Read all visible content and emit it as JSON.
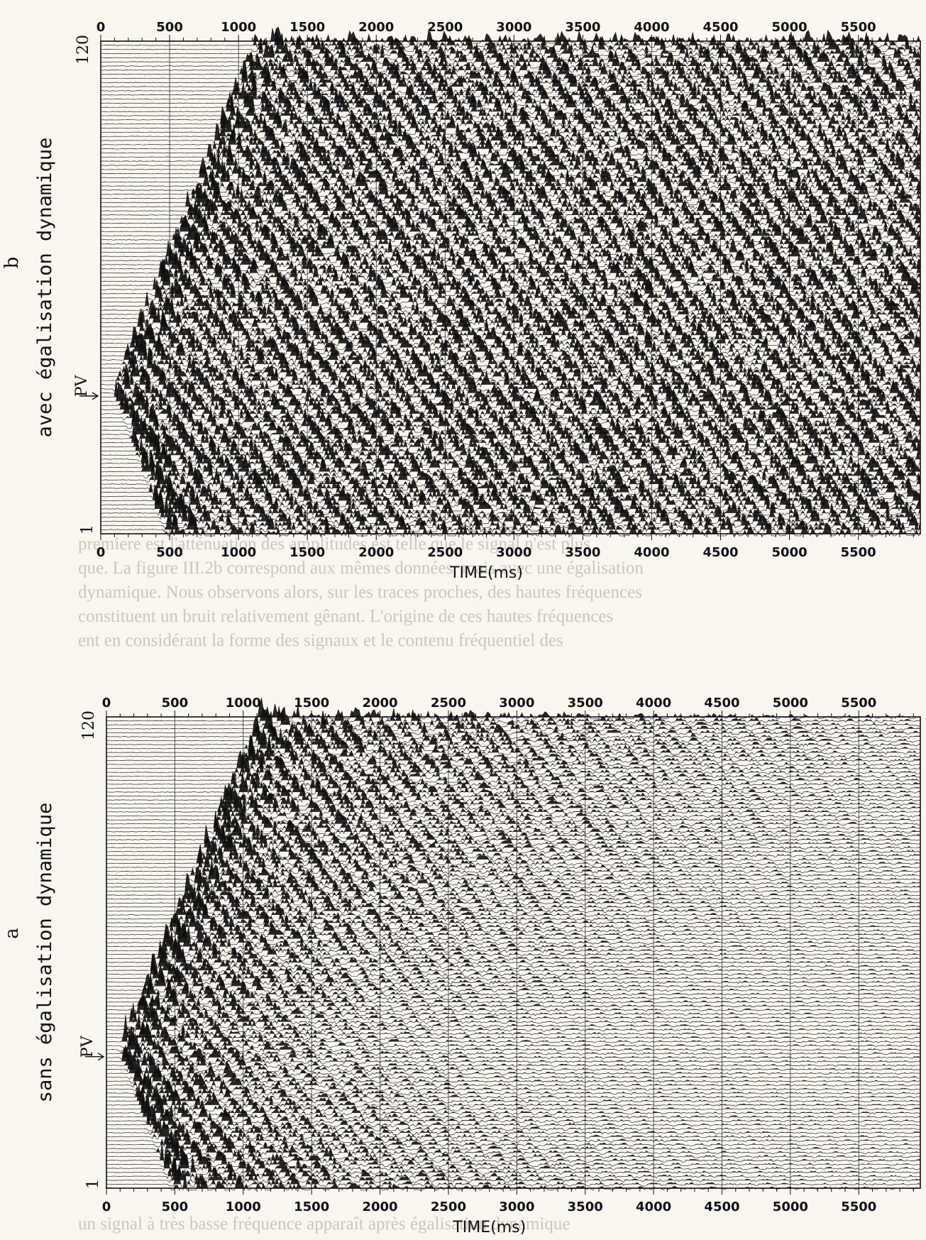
{
  "page_text": {
    "bleed_lines": [
      "premiere est l'atténuation des amplitudes est telle que le signal n'est plus",
      "que. La figure III.2b correspond aux mêmes données, mais avec une égalisation",
      "dynamique. Nous observons alors, sur les traces proches, des hautes fréquences",
      "constituent un bruit relativement gênant. L'origine de ces hautes fréquences",
      "ent en considérant la forme des signaux et le contenu fréquentiel des"
    ],
    "bottom_bleed": "un signal à très basse fréquence apparaît après égalisation dynamique"
  },
  "colors": {
    "ink": "#111111",
    "paper": "#f7f6f1",
    "bleed": "#c9c6be"
  },
  "chart_data": [
    {
      "type": "seismic-wiggle",
      "panel_letter": "b",
      "side_title": "avec égalisation dynamique",
      "xlabel": "TIME(ms)",
      "x_ticks": [
        0,
        500,
        1000,
        1500,
        2000,
        2500,
        3000,
        3500,
        4000,
        4500,
        5000,
        5500
      ],
      "xlim": [
        0,
        5950
      ],
      "y_ticks": [
        1,
        120
      ],
      "ylim": [
        1,
        120
      ],
      "marker": {
        "label": "PV",
        "trace": 36
      },
      "traces": 120,
      "first_arrival_ms": {
        "trace_1": 500,
        "trace_36": 120,
        "trace_120": 1150
      }
    },
    {
      "type": "seismic-wiggle",
      "panel_letter": "a",
      "side_title": "sans égalisation dynamique",
      "xlabel": "TIME(ms)",
      "x_ticks": [
        0,
        500,
        1000,
        1500,
        2000,
        2500,
        3000,
        3500,
        4000,
        4500,
        5000,
        5500
      ],
      "xlim": [
        0,
        5950
      ],
      "y_ticks": [
        1,
        120
      ],
      "ylim": [
        1,
        120
      ],
      "marker": {
        "label": "PV",
        "trace": 36
      },
      "traces": 120,
      "first_arrival_ms": {
        "trace_1": 500,
        "trace_36": 120,
        "trace_120": 1150
      }
    }
  ]
}
